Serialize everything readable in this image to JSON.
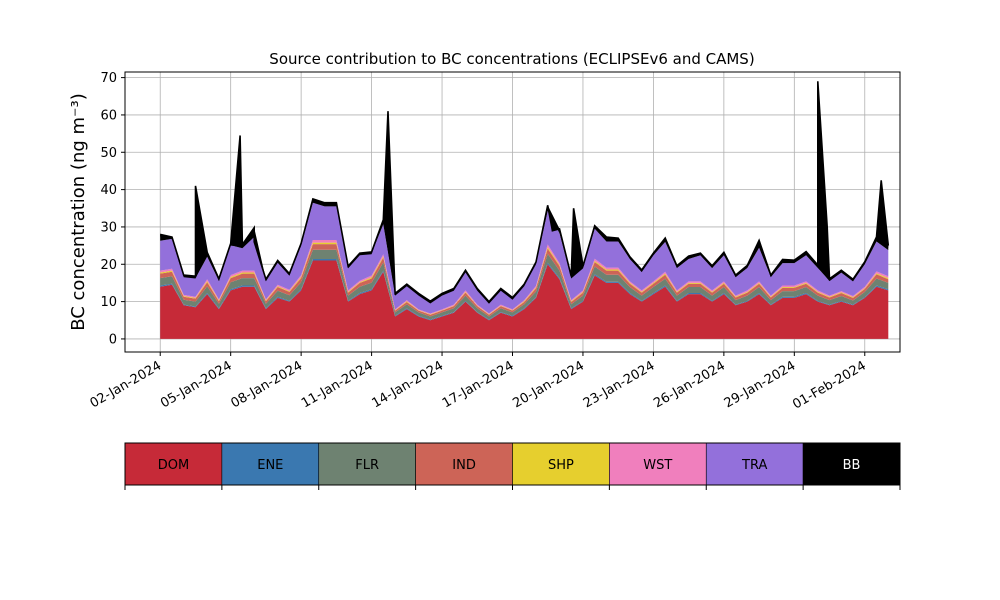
{
  "chart_data": {
    "type": "area",
    "stacked": true,
    "title": "Source contribution to BC concentrations (ECLIPSEv6 and CAMS)",
    "xlabel": "",
    "ylabel": "BC concentration (ng m⁻³)",
    "ylim": [
      -3.5,
      71.5
    ],
    "yticks": [
      0,
      10,
      20,
      30,
      40,
      50,
      60,
      70
    ],
    "xlim_days": [
      -1.5,
      31.5
    ],
    "xtick_labels": [
      "02-Jan-2024",
      "05-Jan-2024",
      "08-Jan-2024",
      "11-Jan-2024",
      "14-Jan-2024",
      "17-Jan-2024",
      "20-Jan-2024",
      "23-Jan-2024",
      "26-Jan-2024",
      "29-Jan-2024",
      "01-Feb-2024"
    ],
    "grid": true,
    "legend_position": "below",
    "x_days": [
      0,
      0.5,
      1,
      1.5,
      2,
      2.5,
      3,
      3.5,
      4,
      4.5,
      5,
      5.5,
      6,
      6.5,
      7,
      7.5,
      8,
      8.5,
      9,
      9.5,
      10,
      10.5,
      11,
      11.5,
      12,
      12.5,
      13,
      13.5,
      14,
      14.5,
      15,
      15.5,
      16,
      16.5,
      17,
      17.5,
      18,
      18.5,
      19,
      19.5,
      20,
      20.5,
      21,
      21.5,
      22,
      22.5,
      23,
      23.5,
      24,
      24.5,
      25,
      25.5,
      26,
      26.5,
      27,
      27.5,
      28,
      28.5,
      29,
      29.5,
      30,
      30.5,
      31
    ],
    "series": [
      {
        "name": "DOM",
        "color": "#c62a38",
        "values": [
          14,
          14.5,
          9,
          8.5,
          12,
          8,
          13,
          14,
          14,
          8,
          11,
          10,
          13,
          21,
          21,
          21,
          10,
          12,
          13,
          18,
          6,
          8,
          6,
          5,
          6,
          7,
          10,
          7,
          5,
          7,
          6,
          8,
          11,
          20,
          16,
          8,
          10,
          17,
          15,
          15,
          12,
          10,
          12,
          14,
          10,
          12,
          12,
          10,
          12,
          9,
          10,
          12,
          9,
          11,
          11,
          12,
          10,
          9,
          10,
          9,
          11,
          14,
          13
        ]
      },
      {
        "name": "ENE",
        "color": "#3a78b0",
        "values": [
          0.3,
          0.3,
          0.2,
          0.2,
          0.3,
          0.2,
          0.3,
          0.3,
          0.3,
          0.2,
          0.3,
          0.2,
          0.3,
          0.4,
          0.4,
          0.4,
          0.2,
          0.3,
          0.3,
          0.3,
          0.2,
          0.2,
          0.2,
          0.2,
          0.2,
          0.2,
          0.2,
          0.2,
          0.2,
          0.2,
          0.2,
          0.2,
          0.2,
          0.4,
          0.3,
          0.2,
          0.2,
          0.3,
          0.3,
          0.3,
          0.3,
          0.2,
          0.3,
          0.3,
          0.2,
          0.3,
          0.3,
          0.2,
          0.3,
          0.2,
          0.2,
          0.3,
          0.2,
          0.3,
          0.3,
          0.3,
          0.2,
          0.2,
          0.2,
          0.2,
          0.2,
          0.3,
          0.3
        ]
      },
      {
        "name": "FLR",
        "color": "#6e8271",
        "values": [
          2,
          2,
          1.3,
          1.3,
          1.8,
          1.2,
          1.9,
          2,
          2,
          1.2,
          1.6,
          1.5,
          1.9,
          2.5,
          2.5,
          2.5,
          1.4,
          1.7,
          1.8,
          2.2,
          0.9,
          1.1,
          0.9,
          0.8,
          0.9,
          1,
          1.4,
          1,
          0.8,
          1,
          0.9,
          1.1,
          1.5,
          2.4,
          2,
          1.1,
          1.4,
          2.1,
          1.9,
          1.9,
          1.6,
          1.4,
          1.6,
          1.8,
          1.4,
          1.6,
          1.6,
          1.4,
          1.6,
          1.2,
          1.4,
          1.6,
          1.2,
          1.5,
          1.5,
          1.6,
          1.4,
          1.2,
          1.3,
          1.1,
          1.4,
          1.9,
          1.7
        ]
      },
      {
        "name": "IND",
        "color": "#cd6457",
        "values": [
          1.2,
          1.2,
          0.8,
          0.8,
          1.1,
          0.7,
          1.1,
          1.2,
          1.2,
          0.7,
          1,
          0.9,
          1.1,
          1.5,
          1.5,
          1.5,
          0.8,
          1,
          1.1,
          1.3,
          0.5,
          0.6,
          0.5,
          0.5,
          0.5,
          0.6,
          0.8,
          0.6,
          0.5,
          0.6,
          0.5,
          0.6,
          0.9,
          1.4,
          1.2,
          0.6,
          0.8,
          1.2,
          1.1,
          1.1,
          0.9,
          0.8,
          0.9,
          1.1,
          0.8,
          0.9,
          0.9,
          0.8,
          0.9,
          0.7,
          0.8,
          0.9,
          0.7,
          0.9,
          0.9,
          0.9,
          0.8,
          0.7,
          0.8,
          0.7,
          0.8,
          1.1,
          1
        ]
      },
      {
        "name": "SHP",
        "color": "#e6cf2e",
        "values": [
          0.3,
          0.3,
          0.2,
          0.2,
          0.3,
          0.2,
          0.3,
          0.3,
          0.3,
          0.2,
          0.2,
          0.2,
          0.3,
          0.4,
          0.4,
          0.4,
          0.2,
          0.2,
          0.3,
          0.3,
          0.1,
          0.2,
          0.1,
          0.1,
          0.1,
          0.1,
          0.2,
          0.1,
          0.1,
          0.1,
          0.1,
          0.2,
          0.2,
          0.4,
          0.3,
          0.2,
          0.2,
          0.3,
          0.3,
          0.3,
          0.2,
          0.2,
          0.2,
          0.3,
          0.2,
          0.2,
          0.2,
          0.2,
          0.2,
          0.2,
          0.2,
          0.2,
          0.2,
          0.2,
          0.2,
          0.2,
          0.2,
          0.2,
          0.2,
          0.2,
          0.2,
          0.3,
          0.3
        ]
      },
      {
        "name": "WST",
        "color": "#f07fbd",
        "values": [
          0.5,
          0.5,
          0.3,
          0.3,
          0.5,
          0.3,
          0.5,
          0.5,
          0.5,
          0.3,
          0.4,
          0.4,
          0.5,
          0.7,
          0.7,
          0.7,
          0.4,
          0.4,
          0.5,
          0.6,
          0.2,
          0.3,
          0.2,
          0.2,
          0.2,
          0.3,
          0.4,
          0.3,
          0.2,
          0.3,
          0.2,
          0.3,
          0.4,
          0.7,
          0.5,
          0.3,
          0.4,
          0.6,
          0.5,
          0.5,
          0.4,
          0.4,
          0.4,
          0.5,
          0.4,
          0.4,
          0.4,
          0.4,
          0.4,
          0.3,
          0.4,
          0.4,
          0.3,
          0.4,
          0.4,
          0.4,
          0.4,
          0.3,
          0.3,
          0.3,
          0.4,
          0.5,
          0.5
        ]
      },
      {
        "name": "TRA",
        "color": "#9370db",
        "values": [
          8,
          8,
          5,
          5,
          6,
          5,
          8,
          6,
          9,
          5,
          6,
          4,
          8,
          10,
          9,
          9,
          6,
          7,
          6,
          8,
          4,
          4,
          4,
          3,
          4,
          4,
          5,
          4,
          3,
          4,
          3,
          4,
          6,
          9,
          8,
          6,
          6,
          8,
          7,
          7,
          6,
          5,
          7,
          8,
          6,
          6,
          7,
          6,
          7,
          5,
          6,
          9,
          5,
          6,
          6,
          7,
          6,
          4,
          5,
          4,
          6,
          8,
          7
        ]
      },
      {
        "name": "BB",
        "color": "#000000",
        "values": [
          1.7,
          0.5,
          0.3,
          0.5,
          1.2,
          0.5,
          0.5,
          1,
          2.5,
          0.4,
          0.5,
          0.3,
          0.5,
          1,
          1,
          1,
          0.5,
          0.4,
          0.3,
          1.2,
          0.3,
          0.3,
          0.3,
          0.3,
          0.3,
          0.3,
          0.4,
          0.3,
          0.2,
          0.3,
          0.2,
          0.3,
          0.4,
          1.5,
          1.2,
          0.4,
          0.5,
          0.8,
          1.2,
          0.9,
          0.6,
          0.5,
          0.6,
          1,
          0.6,
          0.8,
          0.6,
          0.6,
          0.8,
          0.5,
          0.7,
          2,
          0.5,
          1,
          0.8,
          1,
          0.8,
          0.5,
          0.6,
          0.5,
          0.7,
          1.2,
          1.2
        ]
      }
    ],
    "peaks": [
      {
        "x": 1.5,
        "y": 41
      },
      {
        "x": 3.4,
        "y": 54.5
      },
      {
        "x": 4,
        "y": 26
      },
      {
        "x": 9.7,
        "y": 61
      },
      {
        "x": 28,
        "y": 69
      },
      {
        "x": 30.7,
        "y": 42.5
      },
      {
        "x": 16.7,
        "y": 29
      },
      {
        "x": 17.6,
        "y": 35
      },
      {
        "x": 28.4,
        "y": 30
      }
    ],
    "legend": [
      "DOM",
      "ENE",
      "FLR",
      "IND",
      "SHP",
      "WST",
      "TRA",
      "BB"
    ]
  }
}
